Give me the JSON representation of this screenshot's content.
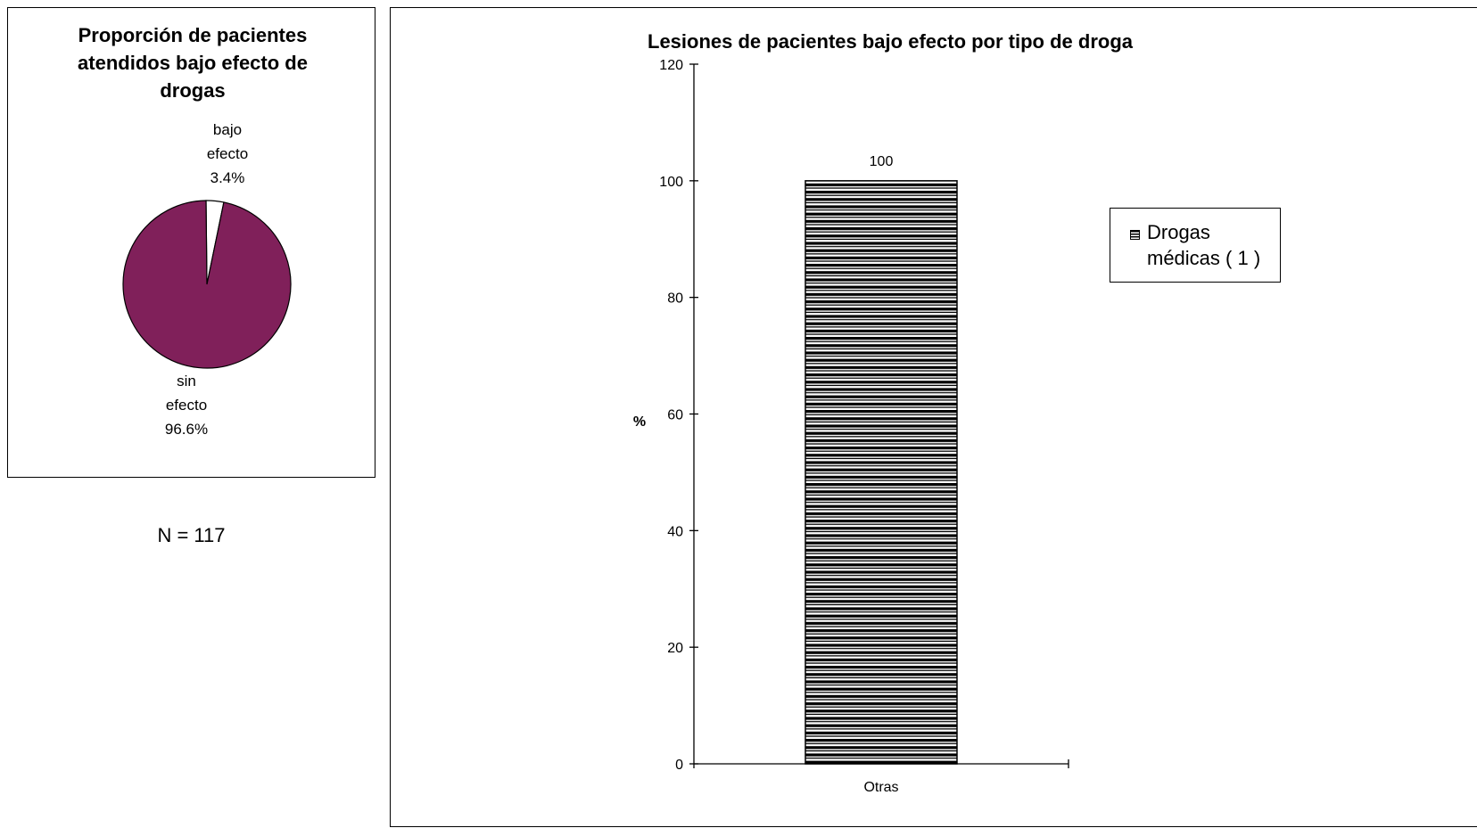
{
  "colors": {
    "pie_main": "#80205A",
    "pie_minor": "#FFFFFF",
    "bar_stripe": "#000000",
    "border": "#000000"
  },
  "pie_panel": {
    "title_lines": [
      "Proporción de pacientes",
      "atendidos bajo efecto de",
      "drogas"
    ],
    "n_label": "N = 117"
  },
  "bar_panel": {
    "legend_label": "Drogas médicas ( 1 )"
  },
  "chart_data": [
    {
      "type": "pie",
      "title": "Proporción de pacientes atendidos bajo efecto de drogas",
      "slices": [
        {
          "label": "bajo efecto",
          "value": 3.4,
          "display": "3.4%"
        },
        {
          "label": "sin efecto",
          "value": 96.6,
          "display": "96.6%"
        }
      ]
    },
    {
      "type": "bar",
      "title": "Lesiones de pacientes bajo efecto por tipo de droga",
      "categories": [
        "Otras"
      ],
      "series": [
        {
          "name": "Drogas médicas ( 1 )",
          "values": [
            100
          ]
        }
      ],
      "data_labels": [
        "100"
      ],
      "xlabel": "",
      "ylabel": "%",
      "ylim": [
        0,
        120
      ],
      "yticks": [
        0,
        20,
        40,
        60,
        80,
        100,
        120
      ],
      "grid": false,
      "legend_position": "right"
    }
  ]
}
